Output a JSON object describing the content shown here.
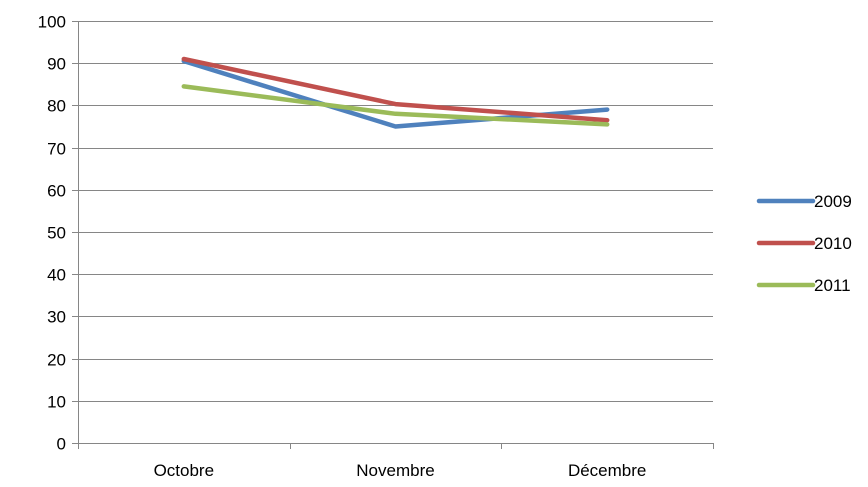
{
  "chart_data": {
    "type": "line",
    "title": "",
    "xlabel": "",
    "ylabel": "",
    "categories": [
      "Octobre",
      "Novembre",
      "Décembre"
    ],
    "ylim": [
      0,
      100
    ],
    "yticks": [
      0,
      10,
      20,
      30,
      40,
      50,
      60,
      70,
      80,
      90,
      100
    ],
    "grid": true,
    "legend_position": "right",
    "series": [
      {
        "name": "2009",
        "color": "#4f81bd",
        "values": [
          90.5,
          75,
          79
        ]
      },
      {
        "name": "2010",
        "color": "#c0504d",
        "values": [
          91,
          80.3,
          76.5
        ]
      },
      {
        "name": "2011",
        "color": "#9bbb59",
        "values": [
          84.5,
          78,
          75.5
        ]
      }
    ]
  }
}
